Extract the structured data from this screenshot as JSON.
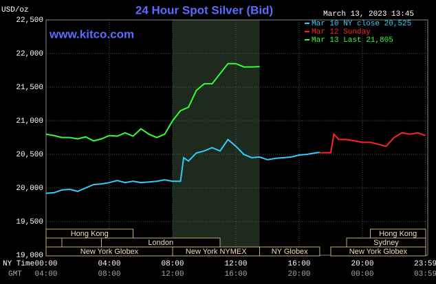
{
  "chart_data": {
    "type": "line",
    "title": "24 Hour Spot Silver (Bid)",
    "y_label": "USD/oz",
    "website": "www.kitco.com",
    "timestamp": "March 13, 2023 13:45",
    "x_label": "NY Time",
    "x2_label": "GMT",
    "xlim": [
      0,
      24
    ],
    "ylim": [
      19.0,
      22.5
    ],
    "grid": true,
    "highlight": [
      8,
      13.5
    ],
    "xticks": [
      {
        "value": 0,
        "label": "00:00"
      },
      {
        "value": 4,
        "label": "04:00"
      },
      {
        "value": 8,
        "label": "08:00"
      },
      {
        "value": 12,
        "label": "12:00"
      },
      {
        "value": 16,
        "label": "16:00"
      },
      {
        "value": 20,
        "label": "20:00"
      },
      {
        "value": 23.983,
        "label": "23:59"
      }
    ],
    "x2ticks": [
      "04:00",
      "08:00",
      "12:00",
      "16:00",
      "20:00",
      "00:00",
      "03:59"
    ],
    "yticks": [
      {
        "value": 19.0,
        "label": "19,000"
      },
      {
        "value": 19.5,
        "label": "19,500"
      },
      {
        "value": 20.0,
        "label": "20,000"
      },
      {
        "value": 20.5,
        "label": "20,500"
      },
      {
        "value": 21.0,
        "label": "21,000"
      },
      {
        "value": 21.5,
        "label": "21,500"
      },
      {
        "value": 22.0,
        "label": "22,000"
      },
      {
        "value": 22.5,
        "label": "22,500"
      }
    ],
    "series": [
      {
        "name": "Mar 10 NY close 20,525",
        "color": "#33ccff",
        "x": [
          0,
          0.5,
          1,
          1.5,
          2,
          2.5,
          3,
          3.5,
          4,
          4.5,
          5,
          5.5,
          6,
          6.5,
          7,
          7.5,
          8,
          8.5,
          8.7,
          9,
          9.5,
          10,
          10.5,
          11,
          11.5,
          12,
          12.5,
          13,
          13.5,
          14,
          14.5,
          15,
          15.5,
          16,
          16.5,
          17,
          17.3
        ],
        "values": [
          19.92,
          19.93,
          19.97,
          19.98,
          19.95,
          20.0,
          20.05,
          20.06,
          20.08,
          20.11,
          20.08,
          20.1,
          20.08,
          20.09,
          20.1,
          20.12,
          20.1,
          20.1,
          20.45,
          20.4,
          20.52,
          20.55,
          20.6,
          20.55,
          20.72,
          20.62,
          20.5,
          20.45,
          20.46,
          20.42,
          20.44,
          20.45,
          20.46,
          20.49,
          20.5,
          20.52,
          20.53
        ]
      },
      {
        "name": "Mar 12 Sunday",
        "color": "#ff2222",
        "x": [
          17.3,
          18,
          18.2,
          18.5,
          19,
          19.5,
          20,
          20.5,
          21,
          21.5,
          22,
          22.5,
          23,
          23.5,
          23.983
        ],
        "values": [
          20.525,
          20.525,
          20.8,
          20.72,
          20.72,
          20.7,
          20.68,
          20.68,
          20.65,
          20.62,
          20.75,
          20.82,
          20.8,
          20.82,
          20.78
        ]
      },
      {
        "name": "Mar 13 Last 21,805",
        "color": "#33ff33",
        "x": [
          0,
          0.5,
          1,
          1.5,
          2,
          2.5,
          3,
          3.5,
          4,
          4.5,
          5,
          5.5,
          6,
          6.5,
          7,
          7.5,
          8,
          8.5,
          9,
          9.5,
          10,
          10.5,
          11,
          11.5,
          12,
          12.5,
          13,
          13.5
        ],
        "values": [
          20.8,
          20.78,
          20.75,
          20.75,
          20.73,
          20.76,
          20.7,
          20.73,
          20.78,
          20.77,
          20.82,
          20.77,
          20.88,
          20.8,
          20.75,
          20.8,
          21.0,
          21.15,
          21.2,
          21.45,
          21.55,
          21.55,
          21.7,
          21.85,
          21.85,
          21.8,
          21.8,
          21.805
        ]
      }
    ],
    "session_rows": [
      [
        {
          "label": "Hong Kong",
          "start": 0,
          "end": 5.5
        },
        {
          "label": "Hong Kong",
          "start": 20.5,
          "end": 24
        }
      ],
      [
        {
          "label": null,
          "start": 0,
          "end": 1
        },
        {
          "label": "London",
          "start": 3.5,
          "end": 11
        },
        {
          "label": "Sydney",
          "start": 19,
          "end": 24
        }
      ],
      [
        {
          "label": "New York Globex",
          "start": 0,
          "end": 8
        },
        {
          "label": "New York NYMEX",
          "start": 8,
          "end": 13.5
        },
        {
          "label": "NY Globex",
          "start": 13.5,
          "end": 17.3
        },
        {
          "label": "New York Globex",
          "start": 18,
          "end": 24
        }
      ]
    ]
  }
}
